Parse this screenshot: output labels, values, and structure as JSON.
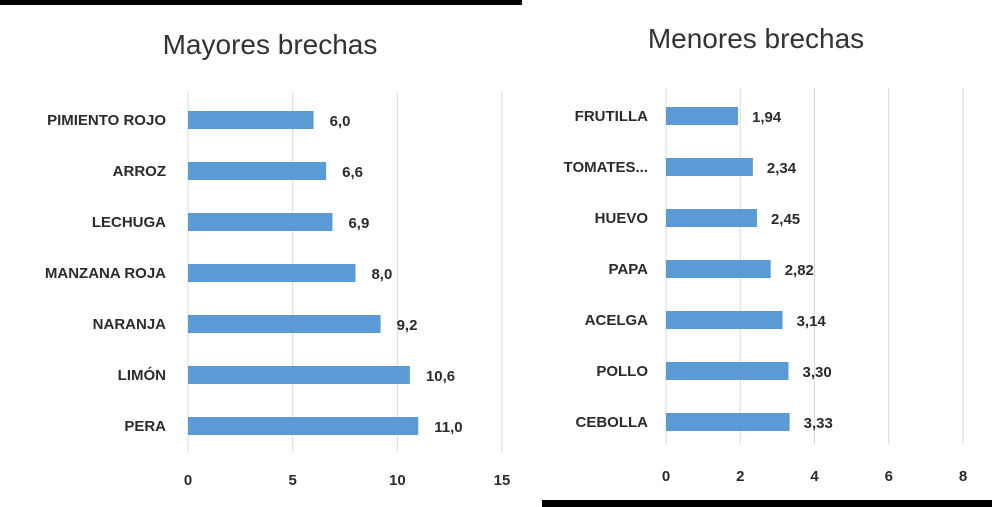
{
  "chart_data": [
    {
      "type": "bar",
      "orientation": "horizontal",
      "title": "Mayores brechas",
      "categories": [
        "PIMIENTO ROJO",
        "ARROZ",
        "LECHUGA",
        "MANZANA ROJA",
        "NARANJA",
        "LIMÓN",
        "PERA"
      ],
      "values": [
        6.0,
        6.6,
        6.9,
        8.0,
        9.2,
        10.6,
        11.0
      ],
      "value_labels": [
        "6,0",
        "6,6",
        "6,9",
        "8,0",
        "9,2",
        "10,6",
        "11,0"
      ],
      "xlim": [
        0,
        15
      ],
      "xticks": [
        "0",
        "5",
        "10",
        "15"
      ],
      "grid": true,
      "bar_color": "#5B9BD5"
    },
    {
      "type": "bar",
      "orientation": "horizontal",
      "title": "Menores brechas",
      "categories": [
        "FRUTILLA",
        "TOMATES...",
        "HUEVO",
        "PAPA",
        "ACELGA",
        "POLLO",
        "CEBOLLA"
      ],
      "values": [
        1.94,
        2.34,
        2.45,
        2.82,
        3.14,
        3.3,
        3.33
      ],
      "value_labels": [
        "1,94",
        "2,34",
        "2,45",
        "2,82",
        "3,14",
        "3,30",
        "3,33"
      ],
      "xlim": [
        0,
        8
      ],
      "xticks": [
        "0",
        "2",
        "4",
        "6",
        "8"
      ],
      "grid": true,
      "bar_color": "#5B9BD5"
    }
  ]
}
